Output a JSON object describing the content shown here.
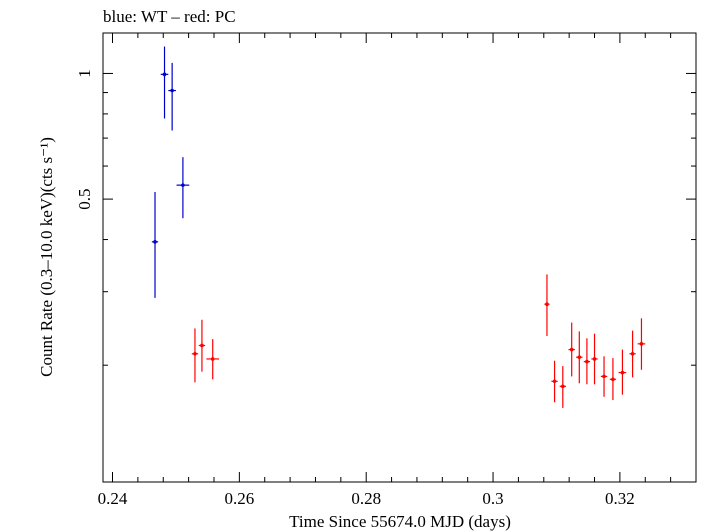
{
  "chart_data": {
    "type": "scatter",
    "title": "blue: WT – red: PC",
    "xlabel": "Time Since 55674.0 MJD (days)",
    "ylabel": "Count Rate (0.3–10.0 keV)(cts s⁻¹)",
    "xlim": [
      0.2385,
      0.332
    ],
    "ylim": [
      0.105,
      1.25
    ],
    "yscale": "log",
    "grid": false,
    "x_ticks": [
      {
        "value": 0.24,
        "label": "0.24"
      },
      {
        "value": 0.26,
        "label": "0.26"
      },
      {
        "value": 0.28,
        "label": "0.28"
      },
      {
        "value": 0.3,
        "label": "0.3"
      },
      {
        "value": 0.32,
        "label": "0.32"
      }
    ],
    "y_ticks": [
      {
        "value": 0.5,
        "label": "0.5"
      },
      {
        "value": 1.0,
        "label": "1"
      }
    ],
    "series": [
      {
        "color": "#0000cc",
        "points": [
          {
            "x": 0.2467,
            "xerr": 0.0005,
            "y": 0.395,
            "ylo": 0.29,
            "yhi": 0.52
          },
          {
            "x": 0.2482,
            "xerr": 0.0006,
            "y": 0.995,
            "ylo": 0.78,
            "yhi": 1.16
          },
          {
            "x": 0.2494,
            "xerr": 0.0006,
            "y": 0.91,
            "ylo": 0.73,
            "yhi": 1.06
          },
          {
            "x": 0.2511,
            "xerr": 0.001,
            "y": 0.54,
            "ylo": 0.45,
            "yhi": 0.63
          }
        ]
      },
      {
        "color": "#ff0000",
        "points": [
          {
            "x": 0.253,
            "xerr": 0.0005,
            "y": 0.213,
            "ylo": 0.182,
            "yhi": 0.245
          },
          {
            "x": 0.2541,
            "xerr": 0.0005,
            "y": 0.223,
            "ylo": 0.193,
            "yhi": 0.257
          },
          {
            "x": 0.2558,
            "xerr": 0.001,
            "y": 0.207,
            "ylo": 0.185,
            "yhi": 0.231
          },
          {
            "x": 0.3085,
            "xerr": 0.0004,
            "y": 0.28,
            "ylo": 0.235,
            "yhi": 0.33
          },
          {
            "x": 0.3097,
            "xerr": 0.0005,
            "y": 0.183,
            "ylo": 0.163,
            "yhi": 0.205
          },
          {
            "x": 0.311,
            "xerr": 0.0005,
            "y": 0.178,
            "ylo": 0.158,
            "yhi": 0.199
          },
          {
            "x": 0.3124,
            "xerr": 0.0005,
            "y": 0.218,
            "ylo": 0.188,
            "yhi": 0.253
          },
          {
            "x": 0.3136,
            "xerr": 0.0005,
            "y": 0.209,
            "ylo": 0.181,
            "yhi": 0.241
          },
          {
            "x": 0.3148,
            "xerr": 0.0005,
            "y": 0.204,
            "ylo": 0.18,
            "yhi": 0.232
          },
          {
            "x": 0.316,
            "xerr": 0.0005,
            "y": 0.207,
            "ylo": 0.18,
            "yhi": 0.238
          },
          {
            "x": 0.3175,
            "xerr": 0.0005,
            "y": 0.188,
            "ylo": 0.168,
            "yhi": 0.21
          },
          {
            "x": 0.3189,
            "xerr": 0.0005,
            "y": 0.185,
            "ylo": 0.165,
            "yhi": 0.208
          },
          {
            "x": 0.3204,
            "xerr": 0.0006,
            "y": 0.192,
            "ylo": 0.17,
            "yhi": 0.218
          },
          {
            "x": 0.322,
            "xerr": 0.0005,
            "y": 0.213,
            "ylo": 0.187,
            "yhi": 0.242
          },
          {
            "x": 0.3234,
            "xerr": 0.0006,
            "y": 0.225,
            "ylo": 0.195,
            "yhi": 0.259
          }
        ]
      }
    ]
  }
}
